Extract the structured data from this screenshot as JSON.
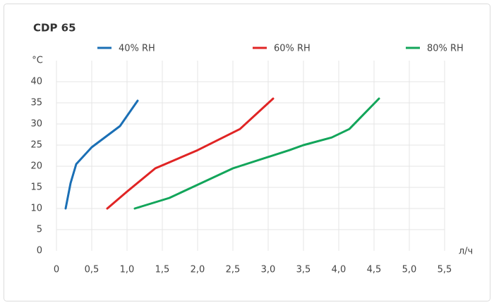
{
  "chart_data": {
    "type": "line",
    "title": "CDP 65",
    "y_label": "°C",
    "x_label": "л/ч",
    "series": [
      {
        "name": "40% RH",
        "color": "#1a6fb5",
        "x": [
          0.13,
          0.2,
          0.28,
          0.5,
          0.9,
          1.15
        ],
        "values": [
          10,
          16,
          20.5,
          24.5,
          29.5,
          35.5
        ]
      },
      {
        "name": "60% RH",
        "color": "#e02424",
        "x": [
          0.72,
          1.0,
          1.4,
          2.0,
          2.6,
          3.07
        ],
        "values": [
          10,
          14,
          19.5,
          23.8,
          28.8,
          36
        ]
      },
      {
        "name": "80% RH",
        "color": "#12a55a",
        "x": [
          1.11,
          1.6,
          2.5,
          3.3,
          3.5,
          3.9,
          4.15,
          4.57
        ],
        "values": [
          10,
          12.5,
          19.5,
          23.8,
          25,
          26.8,
          28.8,
          36
        ]
      }
    ],
    "xlim": [
      0,
      5.5
    ],
    "xticks": [
      0,
      {
        "value": 0.5,
        "label": "0,5"
      },
      {
        "value": 1,
        "label": "1,0"
      },
      {
        "value": 1.5,
        "label": "1,5"
      },
      {
        "value": 2,
        "label": "2,0"
      },
      {
        "value": 2.5,
        "label": "2,5"
      },
      {
        "value": 3,
        "label": "3,0"
      },
      {
        "value": 3.5,
        "label": "3,5"
      },
      {
        "value": 4,
        "label": "4,0"
      },
      {
        "value": 4.5,
        "label": "4,5"
      },
      {
        "value": 5,
        "label": "5,0"
      },
      {
        "value": 5.5,
        "label": "5,5"
      }
    ],
    "ylim": [
      0,
      45
    ],
    "yticks": [
      0,
      5,
      10,
      15,
      20,
      25,
      30,
      35,
      40
    ],
    "grid": true
  }
}
